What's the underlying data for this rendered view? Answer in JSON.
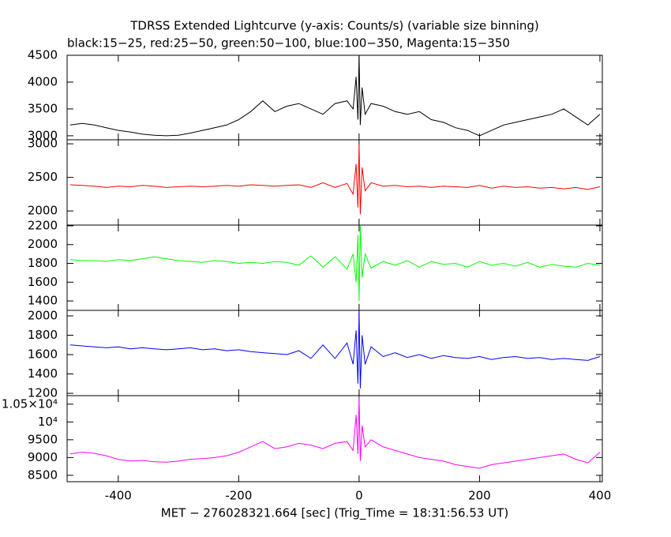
{
  "chart_data": [
    {
      "type": "line",
      "title": "TDRSS Extended Lightcurve (y-axis: Counts/s) (variable size binning)",
      "subtitle": "black:15−25, red:25−50, green:50−100, blue:100−350, Magenta:15−350",
      "xlim": [
        -485,
        404
      ],
      "ylim": [
        2925,
        4500
      ],
      "yticks": [
        3000,
        3500,
        4000,
        4500
      ],
      "series": [
        {
          "color": "#000000",
          "x": [
            -480,
            -460,
            -440,
            -420,
            -400,
            -380,
            -360,
            -340,
            -320,
            -300,
            -280,
            -260,
            -240,
            -220,
            -200,
            -180,
            -160,
            -140,
            -120,
            -100,
            -80,
            -60,
            -40,
            -20,
            -10,
            -5,
            -2,
            0,
            2,
            5,
            10,
            20,
            40,
            60,
            80,
            100,
            120,
            140,
            160,
            180,
            200,
            220,
            240,
            260,
            280,
            300,
            320,
            340,
            360,
            380,
            400
          ],
          "values": [
            3200,
            3230,
            3200,
            3150,
            3100,
            3070,
            3030,
            3010,
            3000,
            3010,
            3050,
            3100,
            3150,
            3200,
            3300,
            3450,
            3650,
            3450,
            3550,
            3600,
            3500,
            3400,
            3600,
            3650,
            3500,
            4100,
            3300,
            4500,
            3200,
            3900,
            3400,
            3600,
            3550,
            3450,
            3400,
            3450,
            3300,
            3250,
            3150,
            3100,
            3000,
            3100,
            3200,
            3250,
            3300,
            3350,
            3400,
            3500,
            3350,
            3200,
            3400
          ]
        }
      ]
    },
    {
      "type": "line",
      "xlim": [
        -485,
        404
      ],
      "ylim": [
        1790,
        3060
      ],
      "yticks": [
        2000,
        2500,
        3000
      ],
      "series": [
        {
          "color": "#ff0000",
          "x": [
            -480,
            -460,
            -440,
            -420,
            -400,
            -380,
            -360,
            -340,
            -320,
            -300,
            -280,
            -260,
            -240,
            -220,
            -200,
            -180,
            -160,
            -140,
            -120,
            -100,
            -80,
            -60,
            -40,
            -20,
            -10,
            -5,
            -2,
            0,
            2,
            5,
            10,
            20,
            40,
            60,
            80,
            100,
            120,
            140,
            160,
            180,
            200,
            220,
            240,
            260,
            280,
            300,
            320,
            340,
            360,
            380,
            400
          ],
          "values": [
            2390,
            2380,
            2370,
            2350,
            2370,
            2360,
            2380,
            2370,
            2350,
            2360,
            2370,
            2360,
            2370,
            2380,
            2370,
            2390,
            2380,
            2370,
            2380,
            2390,
            2350,
            2420,
            2350,
            2410,
            2250,
            2700,
            2050,
            3000,
            1950,
            2650,
            2300,
            2420,
            2370,
            2380,
            2360,
            2370,
            2350,
            2370,
            2360,
            2350,
            2380,
            2340,
            2370,
            2350,
            2360,
            2340,
            2350,
            2330,
            2350,
            2320,
            2360
          ]
        }
      ]
    },
    {
      "type": "line",
      "xlim": [
        -485,
        404
      ],
      "ylim": [
        1300,
        2208
      ],
      "yticks": [
        1400,
        1600,
        1800,
        2000,
        2200
      ],
      "series": [
        {
          "color": "#00ff00",
          "x": [
            -480,
            -460,
            -440,
            -420,
            -400,
            -380,
            -360,
            -340,
            -320,
            -300,
            -280,
            -260,
            -240,
            -220,
            -200,
            -180,
            -160,
            -140,
            -120,
            -100,
            -80,
            -60,
            -40,
            -20,
            -10,
            -5,
            -2,
            0,
            2,
            5,
            10,
            20,
            40,
            60,
            80,
            100,
            120,
            140,
            160,
            180,
            200,
            220,
            240,
            260,
            280,
            300,
            320,
            340,
            360,
            380,
            400
          ],
          "values": [
            1840,
            1830,
            1830,
            1820,
            1840,
            1830,
            1850,
            1870,
            1850,
            1830,
            1820,
            1810,
            1830,
            1820,
            1800,
            1810,
            1800,
            1820,
            1810,
            1780,
            1880,
            1760,
            1870,
            1740,
            1900,
            1600,
            2100,
            1400,
            2200,
            1650,
            1900,
            1750,
            1820,
            1780,
            1830,
            1760,
            1820,
            1790,
            1800,
            1760,
            1820,
            1780,
            1800,
            1770,
            1810,
            1760,
            1790,
            1770,
            1760,
            1800,
            1780
          ]
        }
      ]
    },
    {
      "type": "line",
      "xlim": [
        -485,
        404
      ],
      "ylim": [
        1176,
        2057
      ],
      "yticks": [
        1200,
        1400,
        1600,
        1800,
        2000
      ],
      "series": [
        {
          "color": "#0000ff",
          "x": [
            -480,
            -460,
            -440,
            -420,
            -400,
            -380,
            -360,
            -340,
            -320,
            -300,
            -280,
            -260,
            -240,
            -220,
            -200,
            -180,
            -160,
            -140,
            -120,
            -100,
            -80,
            -60,
            -40,
            -20,
            -10,
            -5,
            -2,
            0,
            2,
            5,
            10,
            20,
            40,
            60,
            80,
            100,
            120,
            140,
            160,
            180,
            200,
            220,
            240,
            260,
            280,
            300,
            320,
            340,
            360,
            380,
            400
          ],
          "values": [
            1700,
            1690,
            1680,
            1670,
            1680,
            1660,
            1670,
            1660,
            1650,
            1660,
            1670,
            1650,
            1660,
            1640,
            1650,
            1630,
            1620,
            1610,
            1600,
            1640,
            1560,
            1700,
            1560,
            1720,
            1500,
            1850,
            1300,
            2050,
            1250,
            1800,
            1500,
            1680,
            1580,
            1620,
            1570,
            1600,
            1560,
            1590,
            1570,
            1560,
            1580,
            1550,
            1570,
            1580,
            1560,
            1570,
            1550,
            1560,
            1550,
            1540,
            1580
          ]
        }
      ]
    },
    {
      "type": "line",
      "xlabel": "MET − 276028321.664 [sec] (Trig_Time = 18:31:56.53 UT)",
      "xlim": [
        -485,
        404
      ],
      "xticks": [
        -400,
        -200,
        0,
        200,
        400
      ],
      "ylim": [
        8320,
        10740
      ],
      "yticks": [
        8500,
        9000,
        9500,
        {
          "value": 10000,
          "label": "10⁴"
        },
        {
          "value": 10500,
          "label": "1.05×10⁴"
        }
      ],
      "series": [
        {
          "color": "#ff00ff",
          "x": [
            -480,
            -460,
            -440,
            -420,
            -400,
            -380,
            -360,
            -340,
            -320,
            -300,
            -280,
            -260,
            -240,
            -220,
            -200,
            -180,
            -160,
            -140,
            -120,
            -100,
            -80,
            -60,
            -40,
            -20,
            -10,
            -5,
            -2,
            0,
            2,
            5,
            10,
            20,
            40,
            60,
            80,
            100,
            120,
            140,
            160,
            180,
            200,
            220,
            240,
            260,
            280,
            300,
            320,
            340,
            360,
            380,
            400
          ],
          "values": [
            9100,
            9150,
            9120,
            9050,
            8950,
            8900,
            8920,
            8880,
            8870,
            8900,
            8950,
            8970,
            9000,
            9050,
            9150,
            9300,
            9450,
            9250,
            9300,
            9400,
            9350,
            9250,
            9400,
            9450,
            9200,
            10200,
            9100,
            10700,
            8900,
            9900,
            9300,
            9500,
            9300,
            9200,
            9100,
            9000,
            8950,
            8900,
            8800,
            8750,
            8700,
            8800,
            8850,
            8900,
            8950,
            9000,
            9050,
            9100,
            8950,
            8850,
            9150
          ]
        }
      ]
    }
  ]
}
